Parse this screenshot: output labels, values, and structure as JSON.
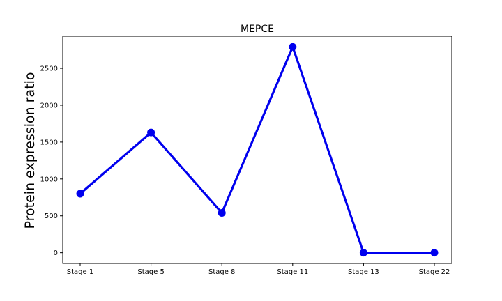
{
  "chart_data": {
    "type": "line",
    "title": "MEPCE",
    "xlabel": "",
    "ylabel": "Protein expression ratio",
    "categories": [
      "Stage 1",
      "Stage 5",
      "Stage 8",
      "Stage 11",
      "Stage 13",
      "Stage 22"
    ],
    "series": [
      {
        "values": [
          800,
          1630,
          540,
          2790,
          0,
          0
        ],
        "color": "#0000ee"
      }
    ],
    "ylim": [
      -145,
      2935
    ],
    "yticks": [
      0,
      500,
      1000,
      1500,
      2000,
      2500
    ],
    "grid": false,
    "legend": "none"
  }
}
